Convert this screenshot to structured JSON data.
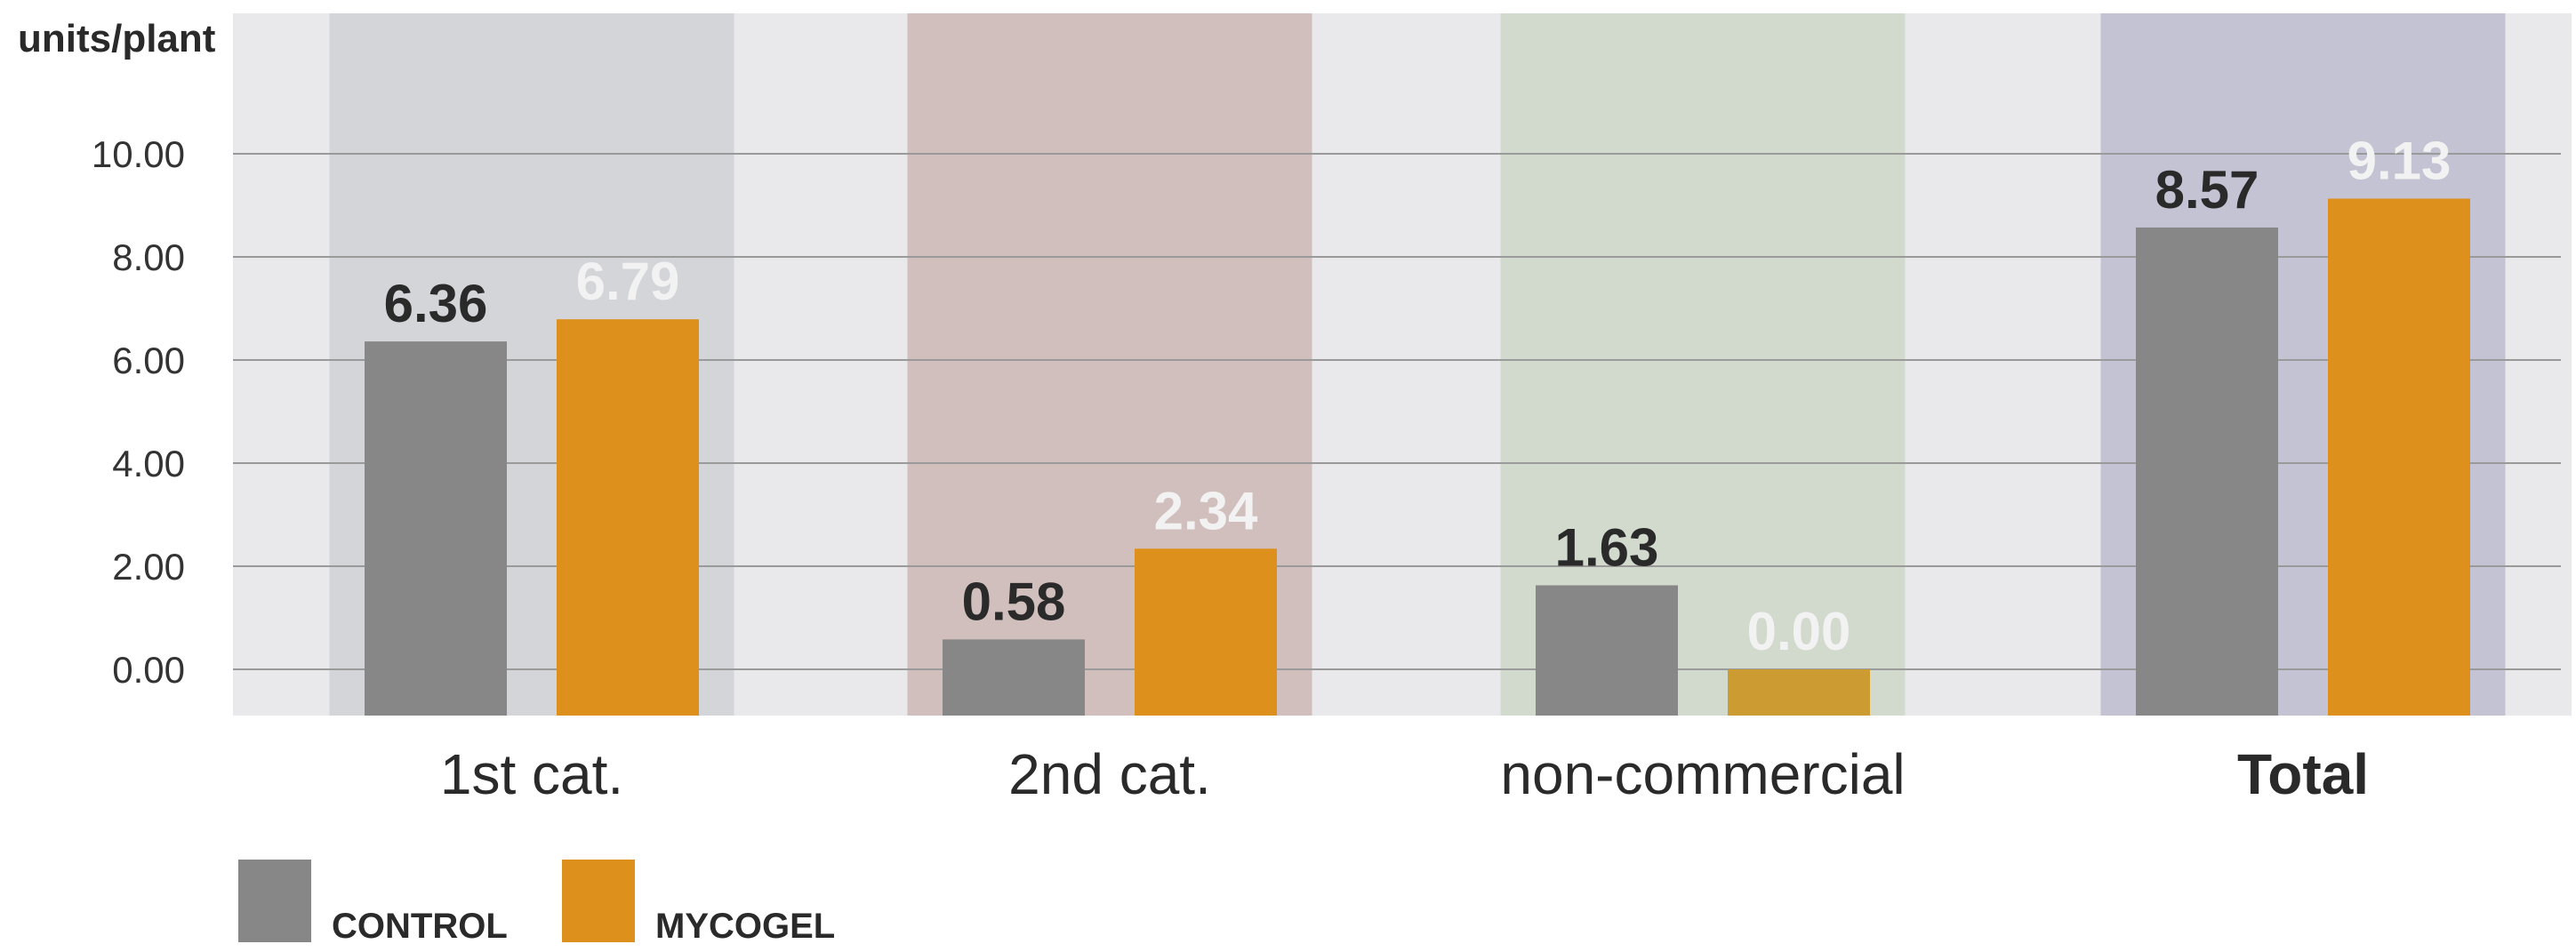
{
  "chart_data": {
    "type": "bar",
    "title": "",
    "xlabel": "",
    "ylabel": "units/plant",
    "ylim": [
      0,
      10
    ],
    "yticks": [
      "0.00",
      "2.00",
      "4.00",
      "6.00",
      "8.00",
      "10.00"
    ],
    "categories": [
      "1st cat.",
      "2nd cat.",
      "non-commercial",
      "Total"
    ],
    "series": [
      {
        "name": "CONTROL",
        "values": [
          6.36,
          0.58,
          1.63,
          8.57
        ],
        "labels": [
          "6.36",
          "0.58",
          "1.63",
          "8.57"
        ],
        "color": "#878787"
      },
      {
        "name": "MYCOGEL",
        "values": [
          6.79,
          2.34,
          0.0,
          9.13
        ],
        "labels": [
          "6.79",
          "2.34",
          "0.00",
          "9.13"
        ],
        "color": "#dd901c"
      }
    ],
    "category_band_colors": [
      "#d4d5d9",
      "#d0bfbc",
      "#d2dace",
      "#c4c3d3"
    ],
    "grid": true,
    "legend": "bottom-left"
  }
}
